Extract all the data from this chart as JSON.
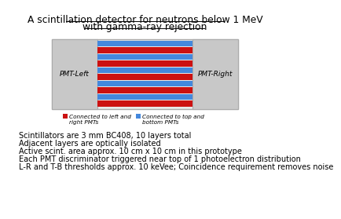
{
  "title_line1": "A scintillation detector for neutrons below 1 MeV",
  "title_line2": "with gamma-ray rejection",
  "pmt_left_label": "PMT-Left",
  "pmt_right_label": "PMT-Right",
  "legend_red_label": "Connected to left and\nright PMTs",
  "legend_blue_label": "Connected to top and\nbottom PMTs",
  "text_lines": [
    "Scintillators are 3 mm BC408, 10 layers total",
    "Adjacent layers are optically isolated",
    "Active scint. area approx. 10 cm x 10 cm in this prototype",
    "Each PMT discriminator triggered near top of 1 photoelectron distribution",
    "L-R and T-B thresholds approx. 10 keVee; Coincidence requirement removes noise"
  ],
  "pmt_color": "#c8c8c8",
  "red_color": "#cc1111",
  "blue_color": "#4488dd",
  "outer_edge_color": "#aaaaaa",
  "layer_pattern": [
    "blue",
    "red",
    "blue",
    "red",
    "blue",
    "red",
    "blue",
    "red",
    "blue",
    "red"
  ]
}
